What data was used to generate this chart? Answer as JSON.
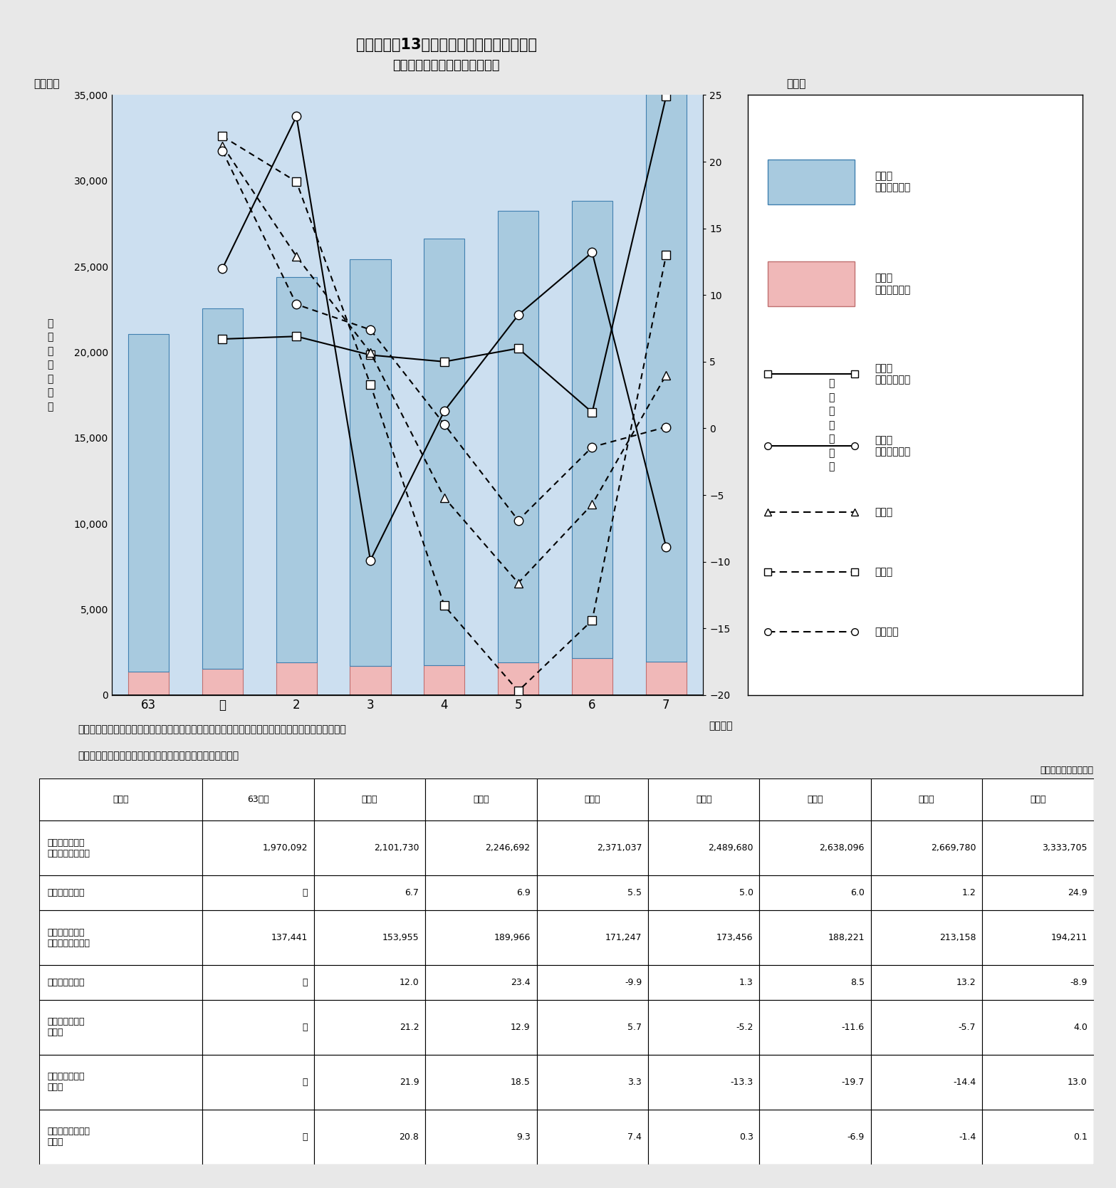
{
  "title_line1": "第１－２－13図　業種別設備投資額の推移",
  "title_line2": "（実績額及び対前年度増減率）",
  "xlabel_years": [
    "63",
    "元",
    "2",
    "3",
    "4",
    "5",
    "6",
    "7"
  ],
  "xlabel_suffix": "（年度）",
  "bar1_values_oku": [
    19701,
    21017,
    22467,
    23710,
    24897,
    26381,
    26698,
    33337
  ],
  "bar2_values_oku": [
    1374,
    1540,
    1900,
    1712,
    1735,
    1882,
    2132,
    1942
  ],
  "line_type1_yoy": [
    null,
    6.7,
    6.9,
    5.5,
    5.0,
    6.0,
    1.2,
    24.9
  ],
  "line_type2_yoy": [
    null,
    12.0,
    23.4,
    -9.9,
    1.3,
    8.5,
    13.2,
    -8.9
  ],
  "line_all_industry": [
    null,
    21.2,
    12.9,
    5.7,
    -5.2,
    -11.6,
    -5.7,
    4.0
  ],
  "line_manufacturing": [
    null,
    21.9,
    18.5,
    3.3,
    -13.3,
    -19.7,
    -14.4,
    13.0
  ],
  "line_non_manufacturing": [
    null,
    20.8,
    9.3,
    7.4,
    0.3,
    -6.9,
    -1.4,
    0.1
  ],
  "bar1_color": "#A8CADF",
  "bar2_color": "#F0B8B8",
  "bar1_edge_color": "#4080B0",
  "bar2_edge_color": "#C07070",
  "bg_color": "#CCDFF0",
  "ylim_left": [
    0,
    35000
  ],
  "ylim_right": [
    -20,
    25
  ],
  "yticks_left": [
    0,
    5000,
    10000,
    15000,
    20000,
    25000,
    30000,
    35000
  ],
  "yticks_right": [
    -20,
    -15,
    -10,
    -5,
    0,
    5,
    10,
    15,
    20,
    25
  ],
  "footnote1": "「通信産業設備投資等実態調査」（郵政省）、「法人企業動向調査報告」（経済企画庁）により作成",
  "footnote2": "（注）７年度は修正計画額、その他の年度は実績額である。",
  "table_unit": "（単位：百万円、％）",
  "table_col_headers": [
    "年　度",
    "63年度",
    "元年度",
    "２年度",
    "３年度",
    "４年度",
    "５年度",
    "６年度",
    "７年度"
  ],
  "table_rows": [
    [
      "第一種電気通信\n事業の設備投資額",
      "1,970,092",
      "2,101,730",
      "2,246,692",
      "2,371,037",
      "2,489,680",
      "2,638,096",
      "2,669,780",
      "3,333,705"
    ],
    [
      "対前年度増減率",
      "－",
      "6.7",
      "6.9",
      "5.5",
      "5.0",
      "6.0",
      "1.2",
      "24.9"
    ],
    [
      "第二種電気通信\n事業の設備投資額",
      "137,441",
      "153,955",
      "189,966",
      "171,247",
      "173,456",
      "188,221",
      "213,158",
      "194,211"
    ],
    [
      "対前年度増減率",
      "－",
      "12.0",
      "23.4",
      "-9.9",
      "1.3",
      "8.5",
      "13.2",
      "-8.9"
    ],
    [
      "全産業対前年度\n増減率",
      "－",
      "21.2",
      "12.9",
      "5.7",
      "-5.2",
      "-11.6",
      "-5.7",
      "4.0"
    ],
    [
      "製造業対前年度\n増減率",
      "－",
      "21.9",
      "18.5",
      "3.3",
      "-13.3",
      "-19.7",
      "-14.4",
      "13.0"
    ],
    [
      "非製造業対前年度\n増減率",
      "－",
      "20.8",
      "9.3",
      "7.4",
      "0.3",
      "-6.9",
      "-1.4",
      "0.1"
    ]
  ]
}
